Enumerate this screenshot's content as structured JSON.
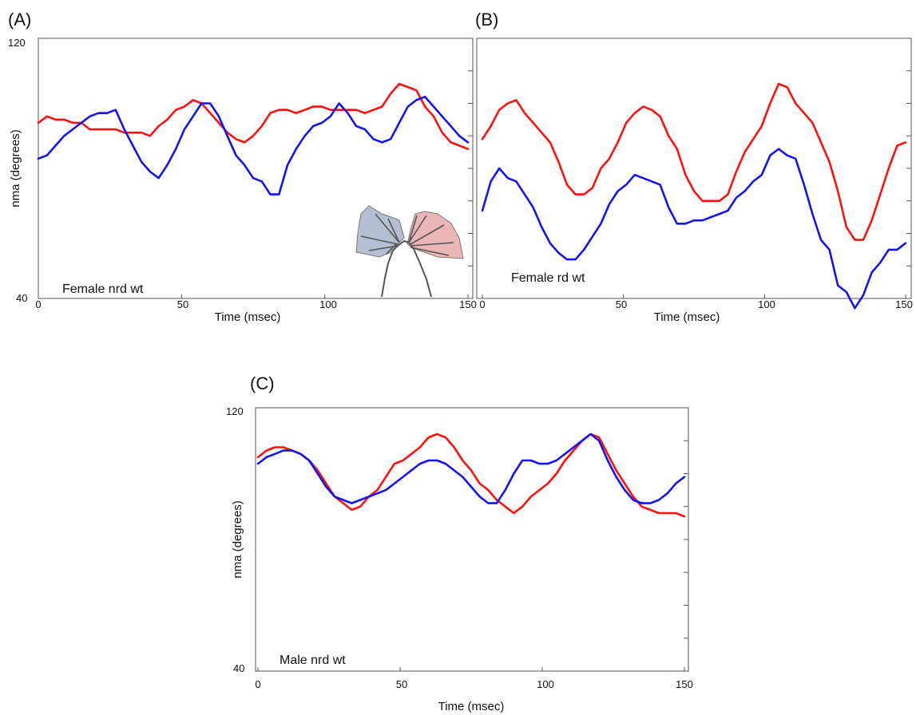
{
  "colors": {
    "red_series": "#ff1010",
    "blue_series": "#1414ee",
    "axis": "#555555",
    "inset_left_fill": "#a9b3cb",
    "inset_right_fill": "#e8a9a9",
    "inset_line": "#555555"
  },
  "chart_data": [
    {
      "panel": "(A)",
      "type": "line",
      "annotation": "Female nrd wt",
      "xlabel": "Time (msec)",
      "ylabel": "nma (degrees)",
      "xlim": [
        0,
        150
      ],
      "ylim": [
        40,
        120
      ],
      "xticks": [
        "0",
        "50",
        "100",
        "150"
      ],
      "yticks": [
        "40",
        "120"
      ],
      "inset": "wing-diagram-icon",
      "series": [
        {
          "color": "red",
          "x": [
            0,
            3,
            6,
            9,
            12,
            15,
            18,
            21,
            24,
            27,
            30,
            33,
            36,
            39,
            42,
            45,
            48,
            51,
            54,
            57,
            60,
            63,
            66,
            69,
            72,
            75,
            78,
            81,
            84,
            87,
            90,
            93,
            96,
            99,
            102,
            105,
            108,
            111,
            114,
            117,
            120,
            123,
            126,
            129,
            132,
            135,
            138,
            141,
            144,
            147,
            150
          ],
          "y": [
            94,
            96,
            95,
            95,
            94,
            94,
            92,
            92,
            92,
            92,
            91,
            91,
            91,
            90,
            93,
            95,
            98,
            99,
            101,
            100,
            97,
            94,
            91,
            89,
            88,
            90,
            93,
            97,
            98,
            98,
            97,
            98,
            99,
            99,
            98,
            98,
            98,
            98,
            97,
            98,
            99,
            103,
            106,
            105,
            104,
            99,
            96,
            91,
            88,
            87,
            86
          ]
        },
        {
          "color": "blue",
          "x": [
            0,
            3,
            6,
            9,
            12,
            15,
            18,
            21,
            24,
            27,
            30,
            33,
            36,
            39,
            42,
            45,
            48,
            51,
            54,
            57,
            60,
            63,
            66,
            69,
            72,
            75,
            78,
            81,
            84,
            87,
            90,
            93,
            96,
            99,
            102,
            105,
            108,
            111,
            114,
            117,
            120,
            123,
            126,
            129,
            132,
            135,
            138,
            141,
            144,
            147,
            150
          ],
          "y": [
            83,
            84,
            87,
            90,
            92,
            94,
            96,
            97,
            97,
            98,
            92,
            87,
            82,
            79,
            77,
            81,
            86,
            92,
            96,
            100,
            100,
            96,
            90,
            84,
            81,
            77,
            76,
            72,
            72,
            81,
            86,
            90,
            93,
            94,
            96,
            100,
            97,
            93,
            92,
            89,
            88,
            89,
            94,
            99,
            101,
            102,
            99,
            96,
            93,
            90,
            88
          ]
        }
      ]
    },
    {
      "panel": "(B)",
      "type": "line",
      "annotation": "Female rd wt",
      "xlabel": "Time (msec)",
      "ylabel": "",
      "xlim": [
        0,
        150
      ],
      "ylim": [
        40,
        120
      ],
      "xticks": [
        "0",
        "50",
        "100",
        "150"
      ],
      "series": [
        {
          "color": "red",
          "x": [
            0,
            3,
            6,
            9,
            12,
            15,
            18,
            21,
            24,
            27,
            30,
            33,
            36,
            39,
            42,
            45,
            48,
            51,
            54,
            57,
            60,
            63,
            66,
            69,
            72,
            75,
            78,
            81,
            84,
            87,
            90,
            93,
            96,
            99,
            102,
            105,
            108,
            111,
            114,
            117,
            120,
            123,
            126,
            129,
            132,
            135,
            138,
            141,
            144,
            147,
            150
          ],
          "y": [
            89,
            93,
            98,
            100,
            101,
            97,
            94,
            91,
            88,
            82,
            75,
            72,
            72,
            74,
            80,
            83,
            88,
            94,
            97,
            99,
            98,
            96,
            90,
            86,
            78,
            73,
            70,
            70,
            70,
            72,
            79,
            85,
            89,
            93,
            100,
            106,
            105,
            100,
            97,
            94,
            88,
            82,
            73,
            62,
            58,
            58,
            64,
            72,
            80,
            87,
            88
          ]
        },
        {
          "color": "blue",
          "x": [
            0,
            3,
            6,
            9,
            12,
            15,
            18,
            21,
            24,
            27,
            30,
            33,
            36,
            39,
            42,
            45,
            48,
            51,
            54,
            57,
            60,
            63,
            66,
            69,
            72,
            75,
            78,
            81,
            84,
            87,
            90,
            93,
            96,
            99,
            102,
            105,
            108,
            111,
            114,
            117,
            120,
            123,
            126,
            129,
            132,
            135,
            138,
            141,
            144,
            147,
            150
          ],
          "y": [
            67,
            76,
            80,
            77,
            76,
            72,
            68,
            62,
            57,
            54,
            52,
            52,
            55,
            59,
            63,
            69,
            73,
            75,
            78,
            77,
            76,
            75,
            68,
            63,
            63,
            64,
            64,
            65,
            66,
            67,
            71,
            73,
            76,
            78,
            84,
            86,
            84,
            83,
            75,
            66,
            58,
            55,
            44,
            42,
            37,
            41,
            48,
            51,
            55,
            55,
            57
          ]
        }
      ]
    },
    {
      "panel": "(C)",
      "type": "line",
      "annotation": "Male nrd wt",
      "xlabel": "Time (msec)",
      "ylabel": "nma (degrees)",
      "xlim": [
        0,
        150
      ],
      "ylim": [
        40,
        120
      ],
      "xticks": [
        "0",
        "50",
        "100",
        "150"
      ],
      "yticks": [
        "40",
        "120"
      ],
      "series": [
        {
          "color": "red",
          "x": [
            0,
            3,
            6,
            9,
            12,
            15,
            18,
            21,
            24,
            27,
            30,
            33,
            36,
            39,
            42,
            45,
            48,
            51,
            54,
            57,
            60,
            63,
            66,
            69,
            72,
            75,
            78,
            81,
            84,
            87,
            90,
            93,
            96,
            99,
            102,
            105,
            108,
            111,
            114,
            117,
            120,
            123,
            126,
            129,
            132,
            135,
            138,
            141,
            144,
            147,
            150
          ],
          "y": [
            105,
            107,
            108,
            108,
            107,
            106,
            104,
            101,
            97,
            93,
            91,
            89,
            90,
            93,
            95,
            99,
            103,
            104,
            106,
            108,
            111,
            112,
            111,
            108,
            104,
            101,
            97,
            95,
            92,
            90,
            88,
            90,
            93,
            95,
            97,
            100,
            104,
            107,
            110,
            112,
            111,
            106,
            101,
            97,
            93,
            90,
            89,
            88,
            88,
            88,
            87
          ]
        },
        {
          "color": "blue",
          "x": [
            0,
            3,
            6,
            9,
            12,
            15,
            18,
            21,
            24,
            27,
            30,
            33,
            36,
            39,
            42,
            45,
            48,
            51,
            54,
            57,
            60,
            63,
            66,
            69,
            72,
            75,
            78,
            81,
            84,
            87,
            90,
            93,
            96,
            99,
            102,
            105,
            108,
            111,
            114,
            117,
            120,
            123,
            126,
            129,
            132,
            135,
            138,
            141,
            144,
            147,
            150
          ],
          "y": [
            103,
            105,
            106,
            107,
            107,
            106,
            104,
            100,
            96,
            93,
            92,
            91,
            92,
            93,
            94,
            95,
            97,
            99,
            101,
            103,
            104,
            104,
            103,
            101,
            99,
            96,
            93,
            91,
            91,
            95,
            100,
            104,
            104,
            103,
            103,
            104,
            106,
            108,
            110,
            112,
            110,
            104,
            99,
            95,
            92,
            91,
            91,
            92,
            94,
            97,
            99
          ]
        }
      ]
    }
  ]
}
